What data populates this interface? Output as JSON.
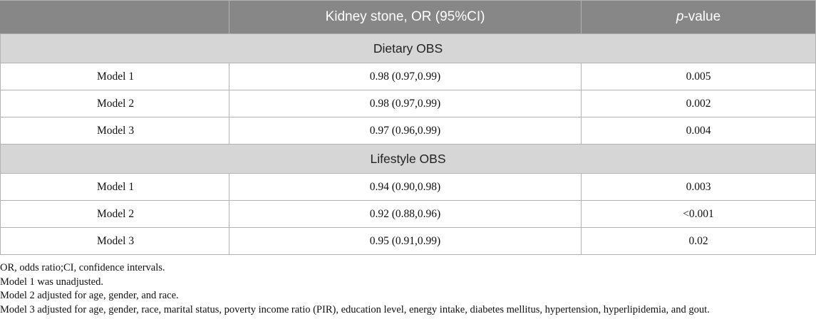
{
  "table": {
    "headers": {
      "col1": "",
      "col2": "Kidney stone, OR (95%CI)",
      "col3_italic": "p",
      "col3_rest": "-value"
    },
    "sections": [
      {
        "title": "Dietary OBS",
        "rows": [
          {
            "model": "Model 1",
            "or": "0.98 (0.97,0.99)",
            "p": "0.005"
          },
          {
            "model": "Model 2",
            "or": "0.98 (0.97,0.99)",
            "p": "0.002"
          },
          {
            "model": "Model 3",
            "or": "0.97 (0.96,0.99)",
            "p": "0.004"
          }
        ]
      },
      {
        "title": "Lifestyle OBS",
        "rows": [
          {
            "model": "Model 1",
            "or": "0.94 (0.90,0.98)",
            "p": "0.003"
          },
          {
            "model": "Model 2",
            "or": "0.92 (0.88,0.96)",
            "p": "<0.001"
          },
          {
            "model": "Model 3",
            "or": "0.95 (0.91,0.99)",
            "p": "0.02"
          }
        ]
      }
    ]
  },
  "notes": [
    "OR, odds ratio;CI, confidence intervals.",
    "Model 1 was unadjusted.",
    "Model 2 adjusted for age, gender, and race.",
    "Model 3 adjusted for age, gender, race, marital status, poverty income ratio (PIR), education level, energy intake, diabetes mellitus, hypertension, hyperlipidemia, and gout."
  ]
}
